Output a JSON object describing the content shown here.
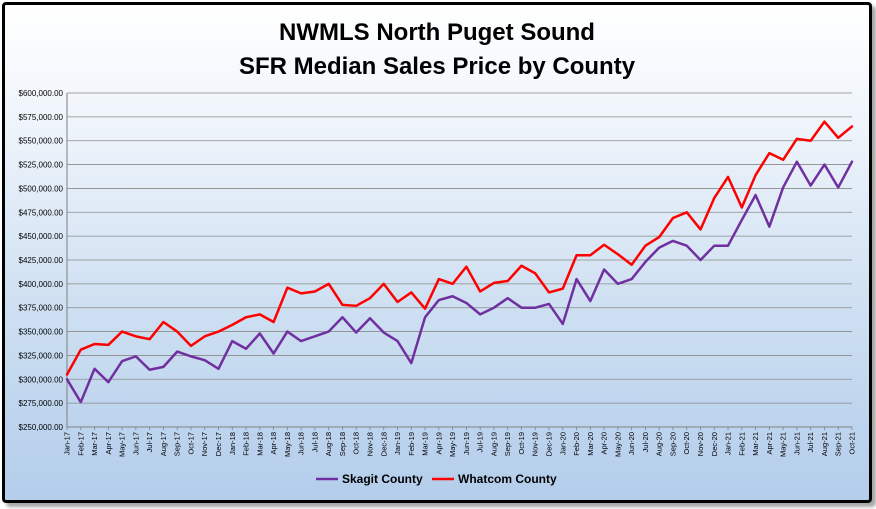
{
  "chart_data": {
    "type": "line",
    "title_lines": [
      "NWMLS North Puget Sound",
      "SFR Median Sales Price by County"
    ],
    "xlabel": "",
    "ylabel": "",
    "ylim": [
      250000,
      600000
    ],
    "y_ticks": [
      250000,
      275000,
      300000,
      325000,
      350000,
      375000,
      400000,
      425000,
      450000,
      475000,
      500000,
      525000,
      550000,
      575000,
      600000
    ],
    "y_tick_labels": [
      "$250,000.00",
      "$275,000.00",
      "$300,000.00",
      "$325,000.00",
      "$350,000.00",
      "$375,000.00",
      "$400,000.00",
      "$425,000.00",
      "$450,000.00",
      "$475,000.00",
      "$500,000.00",
      "$525,000.00",
      "$550,000.00",
      "$575,000.00",
      "$600,000.00"
    ],
    "grid": true,
    "legend_position": "bottom",
    "categories": [
      "Jan-17",
      "Feb-17",
      "Mar-17",
      "Apr-17",
      "May-17",
      "Jun-17",
      "Jul-17",
      "Aug-17",
      "Sep-17",
      "Oct-17",
      "Nov-17",
      "Dec-17",
      "Jan-18",
      "Feb-18",
      "Mar-18",
      "Apr-18",
      "May-18",
      "Jun-18",
      "Jul-18",
      "Aug-18",
      "Sep-18",
      "Oct-18",
      "Nov-18",
      "Dec-18",
      "Jan-19",
      "Feb-19",
      "Mar-19",
      "Apr-19",
      "May-19",
      "Jun-19",
      "Jul-19",
      "Aug-19",
      "Sep-19",
      "Oct-19",
      "Nov-19",
      "Dec-19",
      "Jan-20",
      "Feb-20",
      "Mar-20",
      "Apr-20",
      "May-20",
      "Jun-20",
      "Jul-20",
      "Aug-20",
      "Sep-20",
      "Oct-20",
      "Nov-20",
      "Dec-20",
      "Jan-21",
      "Feb-21",
      "Mar-21",
      "Apr-21",
      "May-21",
      "Jun-21",
      "Jul-21",
      "Aug-21",
      "Sep-21",
      "Oct-21"
    ],
    "series": [
      {
        "name": "Skagit County",
        "color": "#7030a0",
        "values": [
          300000,
          276000,
          311000,
          297000,
          319000,
          324000,
          310000,
          313000,
          329000,
          324000,
          320000,
          311000,
          340000,
          332000,
          348000,
          327000,
          350000,
          340000,
          345000,
          350000,
          365000,
          349000,
          364000,
          349000,
          340000,
          317000,
          365000,
          383000,
          387000,
          380000,
          368000,
          375000,
          385000,
          375000,
          375000,
          379000,
          358000,
          405000,
          382000,
          415000,
          400000,
          405000,
          423000,
          438000,
          445000,
          440000,
          425000,
          440000,
          440000,
          467000,
          493000,
          460000,
          501000,
          528000,
          503000,
          525000,
          501000,
          528000
        ]
      },
      {
        "name": "Whatcom County",
        "color": "#ff0000",
        "values": [
          305000,
          331000,
          337000,
          336000,
          350000,
          345000,
          342000,
          360000,
          350000,
          335000,
          345000,
          350000,
          357000,
          365000,
          368000,
          360000,
          396000,
          390000,
          392000,
          400000,
          378000,
          377000,
          385000,
          400000,
          381000,
          391000,
          374000,
          405000,
          400000,
          418000,
          392000,
          401000,
          403000,
          419000,
          411000,
          391000,
          395000,
          430000,
          430000,
          441000,
          431000,
          420000,
          440000,
          449000,
          469000,
          475000,
          457000,
          490000,
          512000,
          480000,
          514000,
          537000,
          530000,
          552000,
          550000,
          570000,
          553000,
          565000
        ]
      }
    ]
  }
}
